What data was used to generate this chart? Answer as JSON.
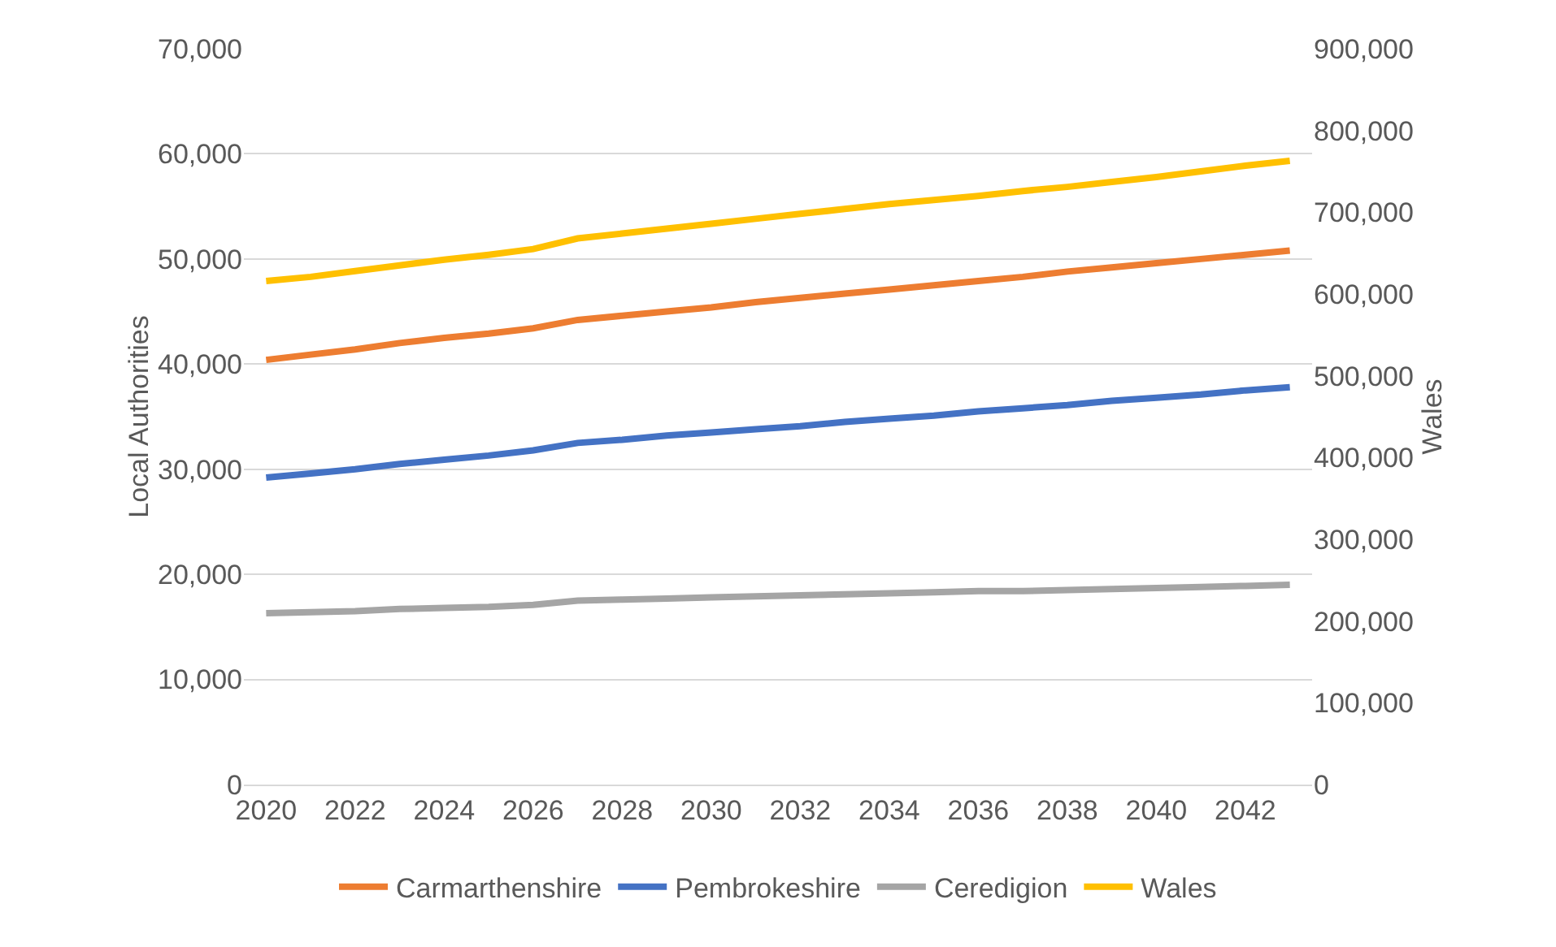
{
  "chart_data": {
    "type": "line",
    "ylabel": "Local Authorities",
    "y2label": "Wales",
    "x": [
      2020,
      2021,
      2022,
      2023,
      2024,
      2025,
      2026,
      2027,
      2028,
      2029,
      2030,
      2031,
      2032,
      2033,
      2034,
      2035,
      2036,
      2037,
      2038,
      2039,
      2040,
      2041,
      2042,
      2043
    ],
    "xlim": [
      2019.5,
      2043.5
    ],
    "xticks": [
      2020,
      2022,
      2024,
      2026,
      2028,
      2030,
      2032,
      2034,
      2036,
      2038,
      2040,
      2042
    ],
    "ylim": [
      0,
      70000
    ],
    "yticks": [
      0,
      {
        "value": 10000,
        "label": "10,000"
      },
      {
        "value": 20000,
        "label": "20,000"
      },
      {
        "value": 30000,
        "label": "30,000"
      },
      {
        "value": 40000,
        "label": "40,000"
      },
      {
        "value": 50000,
        "label": "50,000"
      },
      {
        "value": 60000,
        "label": "60,000"
      },
      {
        "value": 70000,
        "label": "70,000"
      }
    ],
    "y2lim": [
      0,
      900000
    ],
    "y2ticks": [
      0,
      {
        "value": 100000,
        "label": "100,000"
      },
      {
        "value": 200000,
        "label": "200,000"
      },
      {
        "value": 300000,
        "label": "300,000"
      },
      {
        "value": 400000,
        "label": "400,000"
      },
      {
        "value": 500000,
        "label": "500,000"
      },
      {
        "value": 600000,
        "label": "600,000"
      },
      {
        "value": 700000,
        "label": "700,000"
      },
      {
        "value": 800000,
        "label": "800,000"
      },
      {
        "value": 900000,
        "label": "900,000"
      }
    ],
    "grid": "y",
    "legend": "bottom",
    "marker": "none",
    "line_style": "solid",
    "series": [
      {
        "name": "Carmarthenshire",
        "color": "#ed7d31",
        "values": [
          40400,
          40900,
          41400,
          42000,
          42500,
          42900,
          43400,
          44200,
          44600,
          45000,
          45400,
          45900,
          46300,
          46700,
          47100,
          47500,
          47900,
          48300,
          48800,
          49200,
          49600,
          50000,
          50400,
          50800
        ]
      },
      {
        "name": "Pembrokeshire",
        "color": "#4472c4",
        "values": [
          29200,
          29600,
          30000,
          30500,
          30900,
          31300,
          31800,
          32500,
          32800,
          33200,
          33500,
          33800,
          34100,
          34500,
          34800,
          35100,
          35500,
          35800,
          36100,
          36500,
          36800,
          37100,
          37500,
          37800
        ]
      },
      {
        "name": "Ceredigion",
        "color": "#a5a5a5",
        "values": [
          16300,
          16400,
          16500,
          16700,
          16800,
          16900,
          17100,
          17500,
          17600,
          17700,
          17800,
          17900,
          18000,
          18100,
          18200,
          18300,
          18400,
          18400,
          18500,
          18600,
          18700,
          18800,
          18900,
          19000
        ]
      },
      {
        "name": "Wales",
        "color": "#ffc000",
        "axis": "y2",
        "values": [
          616000,
          621000,
          628000,
          635000,
          642000,
          648000,
          655000,
          668000,
          674000,
          680000,
          686000,
          692000,
          698000,
          704000,
          710000,
          715000,
          720000,
          726000,
          731000,
          737000,
          743000,
          750000,
          757000,
          763000
        ]
      }
    ]
  }
}
